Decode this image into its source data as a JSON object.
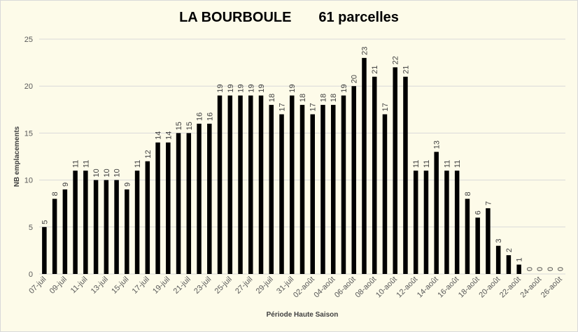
{
  "chart_data": {
    "type": "bar",
    "title_left": "LA BOURBOULE",
    "title_right": "61 parcelles",
    "xlabel": "Période Haute Saison",
    "ylabel": "NB emplacements",
    "ylim": [
      0,
      25
    ],
    "yticks": [
      0,
      5,
      10,
      15,
      20,
      25
    ],
    "grid": true,
    "bar_color": "#000000",
    "categories": [
      "07-juil",
      "08-juil",
      "09-juil",
      "10-juil",
      "11-juil",
      "12-juil",
      "13-juil",
      "14-juil",
      "15-juil",
      "16-juil",
      "17-juil",
      "18-juil",
      "19-juil",
      "20-juil",
      "21-juil",
      "22-juil",
      "23-juil",
      "24-juil",
      "25-juil",
      "26-juil",
      "27-juil",
      "28-juil",
      "29-juil",
      "30-juil",
      "31-juil",
      "01-août",
      "02-août",
      "03-août",
      "04-août",
      "05-août",
      "06-août",
      "07-août",
      "08-août",
      "09-août",
      "10-août",
      "11-août",
      "12-août",
      "13-août",
      "14-août",
      "15-août",
      "16-août",
      "17-août",
      "18-août",
      "19-août",
      "20-août",
      "21-août",
      "22-août",
      "23-août",
      "24-août",
      "25-août",
      "26-août"
    ],
    "values": [
      5,
      8,
      9,
      11,
      11,
      10,
      10,
      10,
      9,
      11,
      12,
      14,
      14,
      15,
      15,
      16,
      16,
      19,
      19,
      19,
      19,
      19,
      18,
      17,
      19,
      18,
      17,
      18,
      18,
      19,
      20,
      23,
      21,
      17,
      22,
      21,
      11,
      11,
      13,
      11,
      11,
      8,
      6,
      7,
      3,
      2,
      1,
      0,
      0,
      0,
      0
    ]
  }
}
